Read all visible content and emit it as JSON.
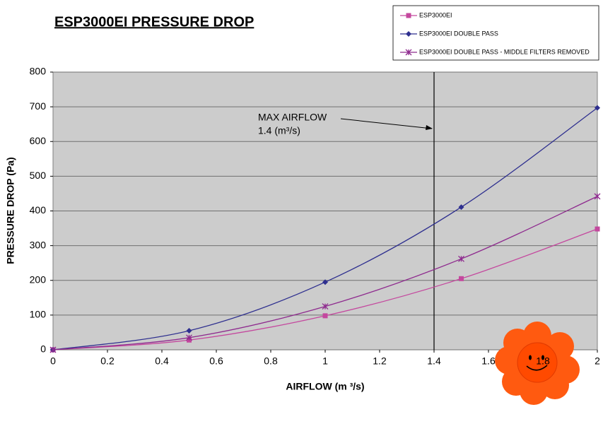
{
  "chart_data": {
    "type": "line",
    "title": "ESP3000EI PRESSURE DROP",
    "x_label": "AIRFLOW (m ³/s)",
    "y_label": "PRESSURE DROP (Pa)",
    "x": [
      0,
      0.5,
      1,
      1.5,
      2
    ],
    "series": [
      {
        "name": "ESP3000EI",
        "color": "#c4489e",
        "marker": "square",
        "values": [
          0,
          28,
          98,
          205,
          348
        ]
      },
      {
        "name": "ESP3000EI DOUBLE PASS",
        "color": "#2e2f8f",
        "marker": "diamond",
        "values": [
          0,
          55,
          195,
          411,
          697
        ]
      },
      {
        "name": "ESP3000EI DOUBLE PASS  - MIDDLE FILTERS REMOVED",
        "color": "#8e2a8e",
        "marker": "star",
        "values": [
          0,
          35,
          125,
          262,
          442
        ]
      }
    ],
    "xlim": [
      0,
      2
    ],
    "xticks": [
      0,
      0.2,
      0.4,
      0.6,
      0.8,
      1,
      1.2,
      1.4,
      1.6,
      1.8,
      2
    ],
    "ylim": [
      0,
      800
    ],
    "yticks": [
      0,
      100,
      200,
      300,
      400,
      500,
      600,
      700,
      800
    ],
    "grid": true,
    "legend": "top-right",
    "vline": 1.4,
    "annotation": [
      "MAX AIRFLOW",
      "1.4 (m³/s)"
    ]
  }
}
